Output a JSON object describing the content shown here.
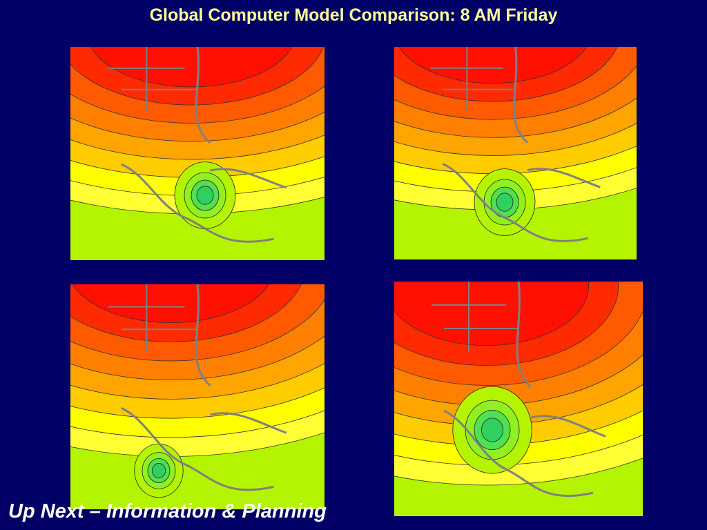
{
  "header": {
    "title": "Global Computer Model Comparison: 8 AM Friday"
  },
  "footer": {
    "text": "Up Next – Information & Planning"
  }
}
